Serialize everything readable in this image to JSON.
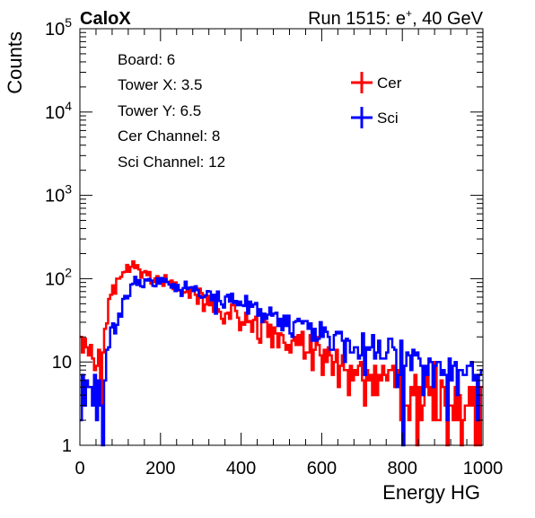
{
  "header": {
    "brand": "CaloX",
    "run_prefix": "Run 1515: e",
    "run_sup": "+",
    "run_suffix": ", 40 GeV"
  },
  "info_box": {
    "lines": [
      "Board: 6",
      "Tower X: 3.5",
      "Tower Y: 6.5",
      "Cer Channel: 8",
      "Sci Channel: 12"
    ]
  },
  "chart_data": {
    "type": "histogram",
    "xlabel": "Energy HG",
    "ylabel": "Counts",
    "xlim": [
      0,
      1000
    ],
    "ylim": [
      1,
      100000
    ],
    "yscale": "log",
    "grid": false,
    "legend_position": "top-right",
    "x_ticks": [
      0,
      200,
      400,
      600,
      800,
      1000
    ],
    "x_tick_labels": [
      "0",
      "200",
      "400",
      "600",
      "800",
      "1000"
    ],
    "y_ticks": [
      1,
      10,
      100,
      1000,
      10000,
      100000
    ],
    "y_tick_labels": [
      {
        "base": "1",
        "exp": ""
      },
      {
        "base": "10",
        "exp": ""
      },
      {
        "base": "10",
        "exp": "2"
      },
      {
        "base": "10",
        "exp": "3"
      },
      {
        "base": "10",
        "exp": "4"
      },
      {
        "base": "10",
        "exp": "5"
      }
    ],
    "bin_width": 5,
    "x": [
      0,
      50,
      75,
      100,
      125,
      150,
      200,
      250,
      300,
      350,
      400,
      450,
      500,
      550,
      600,
      650,
      700,
      750,
      800,
      850,
      900,
      950,
      1000
    ],
    "series": [
      {
        "name": "Cer",
        "color": "#ff0000",
        "values": [
          18,
          8,
          60,
          110,
          145,
          125,
          95,
          75,
          60,
          45,
          35,
          27,
          20,
          16,
          12,
          9,
          7,
          6,
          5,
          4,
          4,
          3,
          3
        ]
      },
      {
        "name": "Sci",
        "color": "#0000ff",
        "values": [
          4,
          4,
          15,
          40,
          80,
          95,
          90,
          75,
          65,
          55,
          47,
          40,
          33,
          28,
          23,
          19,
          16,
          13,
          11,
          9,
          7,
          6,
          5
        ]
      }
    ]
  }
}
